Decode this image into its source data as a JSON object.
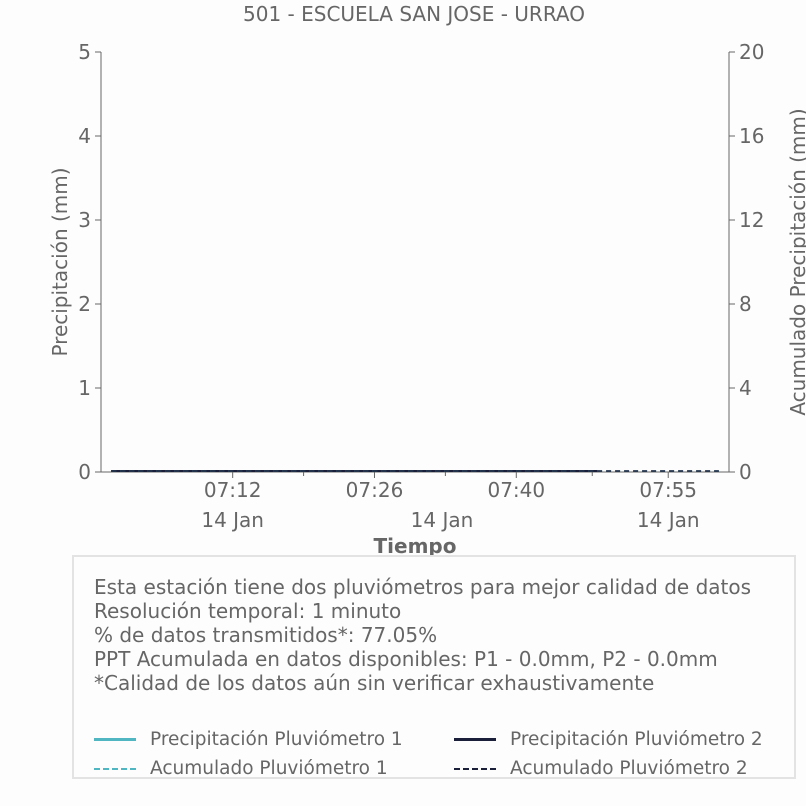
{
  "chart_data": {
    "type": "line",
    "title": "501 - ESCUELA SAN JOSE - URRAO",
    "xlabel": "Tiempo",
    "ylabel": "Precipitación (mm)",
    "y2label": "Acumulado Precipitación (mm)",
    "ylim": [
      0,
      5
    ],
    "y2lim": [
      0,
      20
    ],
    "yticks": [
      "0",
      "1",
      "2",
      "3",
      "4",
      "5"
    ],
    "y2ticks": [
      "0",
      "4",
      "8",
      "12",
      "16",
      "20"
    ],
    "xlim": [
      "06:59",
      "08:01"
    ],
    "xticks": [
      {
        "time": "07:12",
        "date": "14 Jan",
        "value": "07:12"
      },
      {
        "time": "07:26",
        "date": "14 Jan",
        "value": "07:26"
      },
      {
        "time": "07:40",
        "date": "14 Jan",
        "value": "07:40"
      },
      {
        "time": "07:55",
        "date": "14 Jan",
        "value": "07:55"
      }
    ],
    "series": [
      {
        "name": "Precipitación Pluviómetro 1",
        "axis": "left",
        "style": "solid",
        "color": "#4fb6c2",
        "x": [
          "07:00",
          "07:48"
        ],
        "values": [
          0,
          0
        ]
      },
      {
        "name": "Precipitación Pluviómetro 2",
        "axis": "left",
        "style": "solid",
        "color": "#1c1f3a",
        "x": [
          "07:00",
          "07:48"
        ],
        "values": [
          0,
          0
        ]
      },
      {
        "name": "Acumulado Pluviómetro 1",
        "axis": "right",
        "style": "dashed",
        "color": "#4fb6c2",
        "x": [
          "07:00",
          "08:00"
        ],
        "values": [
          0,
          0
        ]
      },
      {
        "name": "Acumulado Pluviómetro 2",
        "axis": "right",
        "style": "dashed",
        "color": "#1c1f3a",
        "x": [
          "07:00",
          "08:00"
        ],
        "values": [
          0,
          0
        ]
      }
    ],
    "grid": false,
    "legend_position": "bottom"
  },
  "info": {
    "lines": [
      "Esta estación tiene dos pluviómetros para mejor calidad de datos",
      "Resolución temporal: 1 minuto",
      "% de datos transmitidos*: 77.05%",
      "PPT Acumulada en datos disponibles: P1 - 0.0mm, P2 - 0.0mm",
      "*Calidad de los datos aún sin verificar exhaustivamente"
    ]
  }
}
